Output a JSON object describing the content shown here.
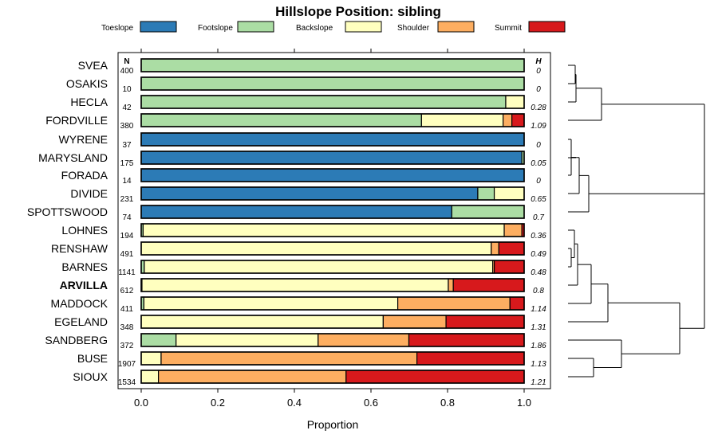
{
  "chart_data": {
    "type": "bar",
    "orientation": "horizontal-stacked",
    "title": "Hillslope Position: sibling",
    "xlabel": "Proportion",
    "xlim": [
      0,
      1
    ],
    "xticks": [
      "0.0",
      "0.2",
      "0.4",
      "0.6",
      "0.8",
      "1.0"
    ],
    "legend_position": "top",
    "n_header": "N",
    "h_header": "H",
    "series": [
      {
        "name": "Toeslope",
        "color": "#2c7bb6"
      },
      {
        "name": "Footslope",
        "color": "#abdda4"
      },
      {
        "name": "Backslope",
        "color": "#ffffbf"
      },
      {
        "name": "Shoulder",
        "color": "#fdae61"
      },
      {
        "name": "Summit",
        "color": "#d7191c"
      }
    ],
    "rows": [
      {
        "label": "SVEA",
        "n": "400",
        "h": "0",
        "values": [
          0,
          1.0,
          0,
          0,
          0
        ]
      },
      {
        "label": "OSAKIS",
        "n": "10",
        "h": "0",
        "values": [
          0,
          1.0,
          0,
          0,
          0
        ]
      },
      {
        "label": "HECLA",
        "n": "42",
        "h": "0.28",
        "values": [
          0,
          0.952,
          0.048,
          0,
          0
        ]
      },
      {
        "label": "FORDVILLE",
        "n": "380",
        "h": "1.09",
        "values": [
          0,
          0.732,
          0.213,
          0.023,
          0.032
        ]
      },
      {
        "label": "WYRENE",
        "n": "37",
        "h": "0",
        "values": [
          1.0,
          0,
          0,
          0,
          0
        ]
      },
      {
        "label": "MARYSLAND",
        "n": "175",
        "h": "0.05",
        "values": [
          0.994,
          0.006,
          0,
          0,
          0
        ]
      },
      {
        "label": "FORADA",
        "n": "14",
        "h": "0",
        "values": [
          1.0,
          0,
          0,
          0,
          0
        ]
      },
      {
        "label": "DIVIDE",
        "n": "231",
        "h": "0.65",
        "values": [
          0.879,
          0.043,
          0.078,
          0,
          0
        ]
      },
      {
        "label": "SPOTTSWOOD",
        "n": "74",
        "h": "0.7",
        "values": [
          0.811,
          0.189,
          0,
          0,
          0
        ]
      },
      {
        "label": "LOHNES",
        "n": "194",
        "h": "0.36",
        "values": [
          0,
          0.005,
          0.943,
          0.046,
          0.006
        ]
      },
      {
        "label": "RENSHAW",
        "n": "491",
        "h": "0.49",
        "values": [
          0,
          0,
          0.914,
          0.02,
          0.066
        ]
      },
      {
        "label": "BARNES",
        "n": "1141",
        "h": "0.48",
        "values": [
          0,
          0.008,
          0.91,
          0.004,
          0.078
        ]
      },
      {
        "label": "ARVILLA",
        "n": "612",
        "h": "0.8",
        "bold": true,
        "values": [
          0,
          0.002,
          0.8,
          0.013,
          0.185
        ]
      },
      {
        "label": "MADDOCK",
        "n": "411",
        "h": "1.14",
        "values": [
          0,
          0.007,
          0.663,
          0.293,
          0.037
        ]
      },
      {
        "label": "EGELAND",
        "n": "348",
        "h": "1.31",
        "values": [
          0,
          0,
          0.632,
          0.164,
          0.204
        ]
      },
      {
        "label": "SANDBERG",
        "n": "372",
        "h": "1.86",
        "values": [
          0,
          0.091,
          0.371,
          0.237,
          0.301
        ]
      },
      {
        "label": "BUSE",
        "n": "1907",
        "h": "1.13",
        "values": [
          0,
          0,
          0.052,
          0.668,
          0.28
        ]
      },
      {
        "label": "SIOUX",
        "n": "1534",
        "h": "1.21",
        "values": [
          0,
          0,
          0.045,
          0.49,
          0.465
        ]
      }
    ]
  }
}
